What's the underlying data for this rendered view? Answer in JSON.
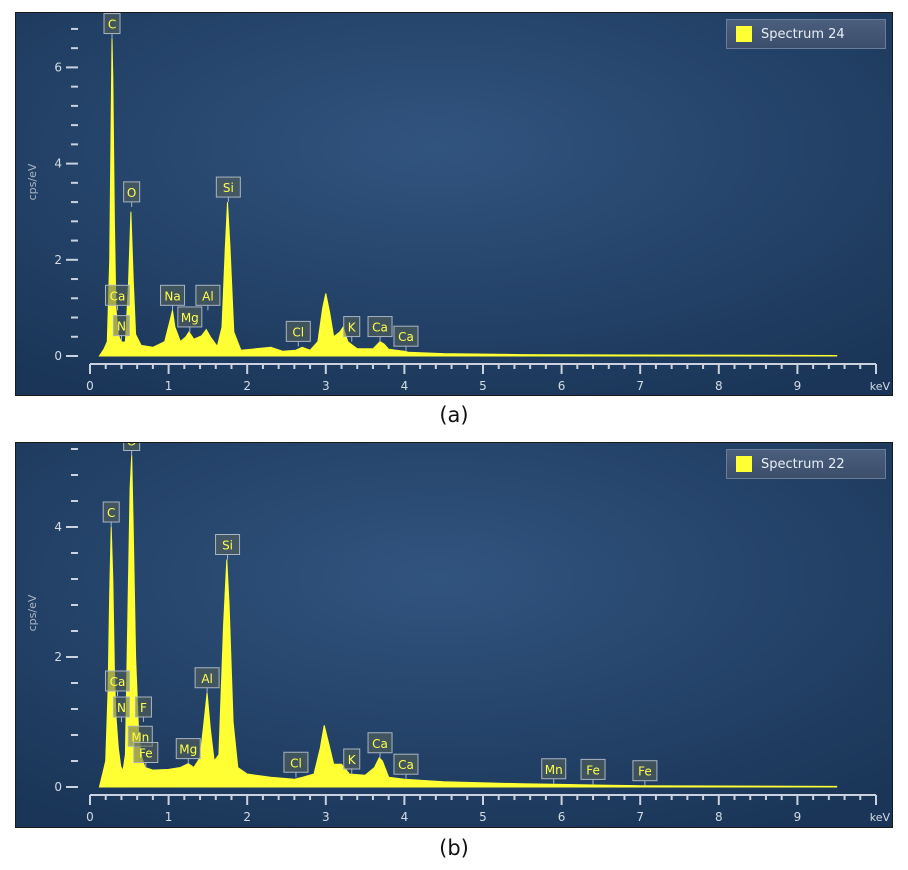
{
  "chart_data": [
    {
      "type": "area",
      "caption": "(a)",
      "ylabel": "cps/eV",
      "xlabel": "keV",
      "xlim": [
        0,
        10
      ],
      "ylim": [
        0,
        7
      ],
      "x_ticks": [
        "0",
        "1",
        "2",
        "3",
        "4",
        "5",
        "6",
        "7",
        "8",
        "9"
      ],
      "y_ticks": [
        "0",
        "2",
        "4",
        "6"
      ],
      "series": [
        {
          "name": "Spectrum 24",
          "color": "#ffff33",
          "points": [
            [
              0.12,
              0.0
            ],
            [
              0.18,
              0.15
            ],
            [
              0.22,
              0.3
            ],
            [
              0.25,
              2.0
            ],
            [
              0.27,
              5.0
            ],
            [
              0.28,
              6.6
            ],
            [
              0.29,
              5.8
            ],
            [
              0.31,
              2.8
            ],
            [
              0.33,
              1.0
            ],
            [
              0.36,
              0.45
            ],
            [
              0.39,
              0.32
            ],
            [
              0.42,
              0.28
            ],
            [
              0.45,
              0.3
            ],
            [
              0.49,
              1.5
            ],
            [
              0.52,
              3.0
            ],
            [
              0.55,
              1.6
            ],
            [
              0.58,
              0.45
            ],
            [
              0.65,
              0.22
            ],
            [
              0.8,
              0.18
            ],
            [
              0.95,
              0.3
            ],
            [
              1.02,
              0.75
            ],
            [
              1.05,
              0.95
            ],
            [
              1.08,
              0.6
            ],
            [
              1.15,
              0.3
            ],
            [
              1.22,
              0.4
            ],
            [
              1.26,
              0.5
            ],
            [
              1.32,
              0.35
            ],
            [
              1.42,
              0.42
            ],
            [
              1.48,
              0.55
            ],
            [
              1.53,
              0.4
            ],
            [
              1.62,
              0.2
            ],
            [
              1.68,
              0.6
            ],
            [
              1.72,
              2.2
            ],
            [
              1.75,
              3.2
            ],
            [
              1.78,
              2.3
            ],
            [
              1.83,
              0.5
            ],
            [
              1.92,
              0.12
            ],
            [
              2.3,
              0.18
            ],
            [
              2.45,
              0.1
            ],
            [
              2.62,
              0.12
            ],
            [
              2.7,
              0.18
            ],
            [
              2.8,
              0.12
            ],
            [
              2.9,
              0.3
            ],
            [
              2.96,
              1.0
            ],
            [
              3.0,
              1.3
            ],
            [
              3.05,
              0.9
            ],
            [
              3.1,
              0.4
            ],
            [
              3.18,
              0.5
            ],
            [
              3.22,
              0.6
            ],
            [
              3.28,
              0.3
            ],
            [
              3.4,
              0.15
            ],
            [
              3.6,
              0.15
            ],
            [
              3.69,
              0.3
            ],
            [
              3.74,
              0.25
            ],
            [
              3.8,
              0.14
            ],
            [
              4.0,
              0.1
            ],
            [
              4.05,
              0.08
            ],
            [
              4.5,
              0.05
            ],
            [
              5.5,
              0.03
            ],
            [
              7.0,
              0.02
            ],
            [
              9.5,
              0.01
            ],
            [
              9.5,
              0.0
            ]
          ]
        }
      ],
      "annotations": [
        {
          "label": "C",
          "x": 0.28,
          "y": 6.6
        },
        {
          "label": "O",
          "x": 0.53,
          "y": 3.1
        },
        {
          "label": "Si",
          "x": 1.76,
          "y": 3.2
        },
        {
          "label": "Na",
          "x": 1.05,
          "y": 0.95
        },
        {
          "label": "Al",
          "x": 1.5,
          "y": 0.95
        },
        {
          "label": "Mg",
          "x": 1.27,
          "y": 0.5
        },
        {
          "label": "Ca",
          "x": 0.35,
          "y": 0.95
        },
        {
          "label": "N",
          "x": 0.4,
          "y": 0.32
        },
        {
          "label": "Cl",
          "x": 2.65,
          "y": 0.2
        },
        {
          "label": "K",
          "x": 3.33,
          "y": 0.3
        },
        {
          "label": "Ca",
          "x": 3.69,
          "y": 0.3
        },
        {
          "label": "Ca",
          "x": 4.02,
          "y": 0.1
        }
      ]
    },
    {
      "type": "area",
      "caption": "(b)",
      "ylabel": "cps/eV",
      "xlabel": "keV",
      "xlim": [
        0,
        10
      ],
      "ylim": [
        0,
        5.2
      ],
      "x_ticks": [
        "0",
        "1",
        "2",
        "3",
        "4",
        "5",
        "6",
        "7",
        "8",
        "9"
      ],
      "y_ticks": [
        "0",
        "2",
        "4"
      ],
      "series": [
        {
          "name": "Spectrum 22",
          "color": "#ffff33",
          "points": [
            [
              0.12,
              0.0
            ],
            [
              0.16,
              0.2
            ],
            [
              0.2,
              0.4
            ],
            [
              0.23,
              1.5
            ],
            [
              0.25,
              3.0
            ],
            [
              0.27,
              4.0
            ],
            [
              0.29,
              3.2
            ],
            [
              0.31,
              1.8
            ],
            [
              0.33,
              1.1
            ],
            [
              0.36,
              0.6
            ],
            [
              0.39,
              0.32
            ],
            [
              0.42,
              0.25
            ],
            [
              0.45,
              0.5
            ],
            [
              0.48,
              2.5
            ],
            [
              0.51,
              4.6
            ],
            [
              0.53,
              5.1
            ],
            [
              0.55,
              4.0
            ],
            [
              0.58,
              2.0
            ],
            [
              0.62,
              0.8
            ],
            [
              0.66,
              0.45
            ],
            [
              0.7,
              0.3
            ],
            [
              0.8,
              0.26
            ],
            [
              1.0,
              0.27
            ],
            [
              1.15,
              0.3
            ],
            [
              1.25,
              0.36
            ],
            [
              1.32,
              0.3
            ],
            [
              1.4,
              0.45
            ],
            [
              1.45,
              1.0
            ],
            [
              1.49,
              1.45
            ],
            [
              1.53,
              0.9
            ],
            [
              1.58,
              0.4
            ],
            [
              1.64,
              0.5
            ],
            [
              1.7,
              2.5
            ],
            [
              1.74,
              3.5
            ],
            [
              1.77,
              2.8
            ],
            [
              1.82,
              1.0
            ],
            [
              1.88,
              0.3
            ],
            [
              2.0,
              0.2
            ],
            [
              2.3,
              0.15
            ],
            [
              2.6,
              0.12
            ],
            [
              2.7,
              0.15
            ],
            [
              2.85,
              0.2
            ],
            [
              2.93,
              0.6
            ],
            [
              2.98,
              0.95
            ],
            [
              3.03,
              0.7
            ],
            [
              3.1,
              0.35
            ],
            [
              3.2,
              0.35
            ],
            [
              3.3,
              0.2
            ],
            [
              3.5,
              0.18
            ],
            [
              3.62,
              0.3
            ],
            [
              3.68,
              0.45
            ],
            [
              3.72,
              0.4
            ],
            [
              3.8,
              0.15
            ],
            [
              4.0,
              0.12
            ],
            [
              4.5,
              0.08
            ],
            [
              5.5,
              0.05
            ],
            [
              6.0,
              0.04
            ],
            [
              6.5,
              0.03
            ],
            [
              7.0,
              0.02
            ],
            [
              9.5,
              0.01
            ],
            [
              9.5,
              0.0
            ]
          ]
        }
      ],
      "annotations": [
        {
          "label": "O",
          "x": 0.53,
          "y": 5.1
        },
        {
          "label": "C",
          "x": 0.27,
          "y": 4.0
        },
        {
          "label": "Si",
          "x": 1.75,
          "y": 3.5
        },
        {
          "label": "Ca",
          "x": 0.35,
          "y": 1.4
        },
        {
          "label": "N",
          "x": 0.4,
          "y": 1.0
        },
        {
          "label": "F",
          "x": 0.68,
          "y": 1.0
        },
        {
          "label": "Mn",
          "x": 0.64,
          "y": 0.55
        },
        {
          "label": "Fe",
          "x": 0.71,
          "y": 0.3
        },
        {
          "label": "Al",
          "x": 1.49,
          "y": 1.45
        },
        {
          "label": "Mg",
          "x": 1.25,
          "y": 0.36
        },
        {
          "label": "Cl",
          "x": 2.62,
          "y": 0.15
        },
        {
          "label": "K",
          "x": 3.33,
          "y": 0.2
        },
        {
          "label": "Ca",
          "x": 3.69,
          "y": 0.45
        },
        {
          "label": "Ca",
          "x": 4.02,
          "y": 0.12
        },
        {
          "label": "Mn",
          "x": 5.9,
          "y": 0.05
        },
        {
          "label": "Fe",
          "x": 6.4,
          "y": 0.04
        },
        {
          "label": "Fe",
          "x": 7.06,
          "y": 0.02
        }
      ]
    }
  ]
}
